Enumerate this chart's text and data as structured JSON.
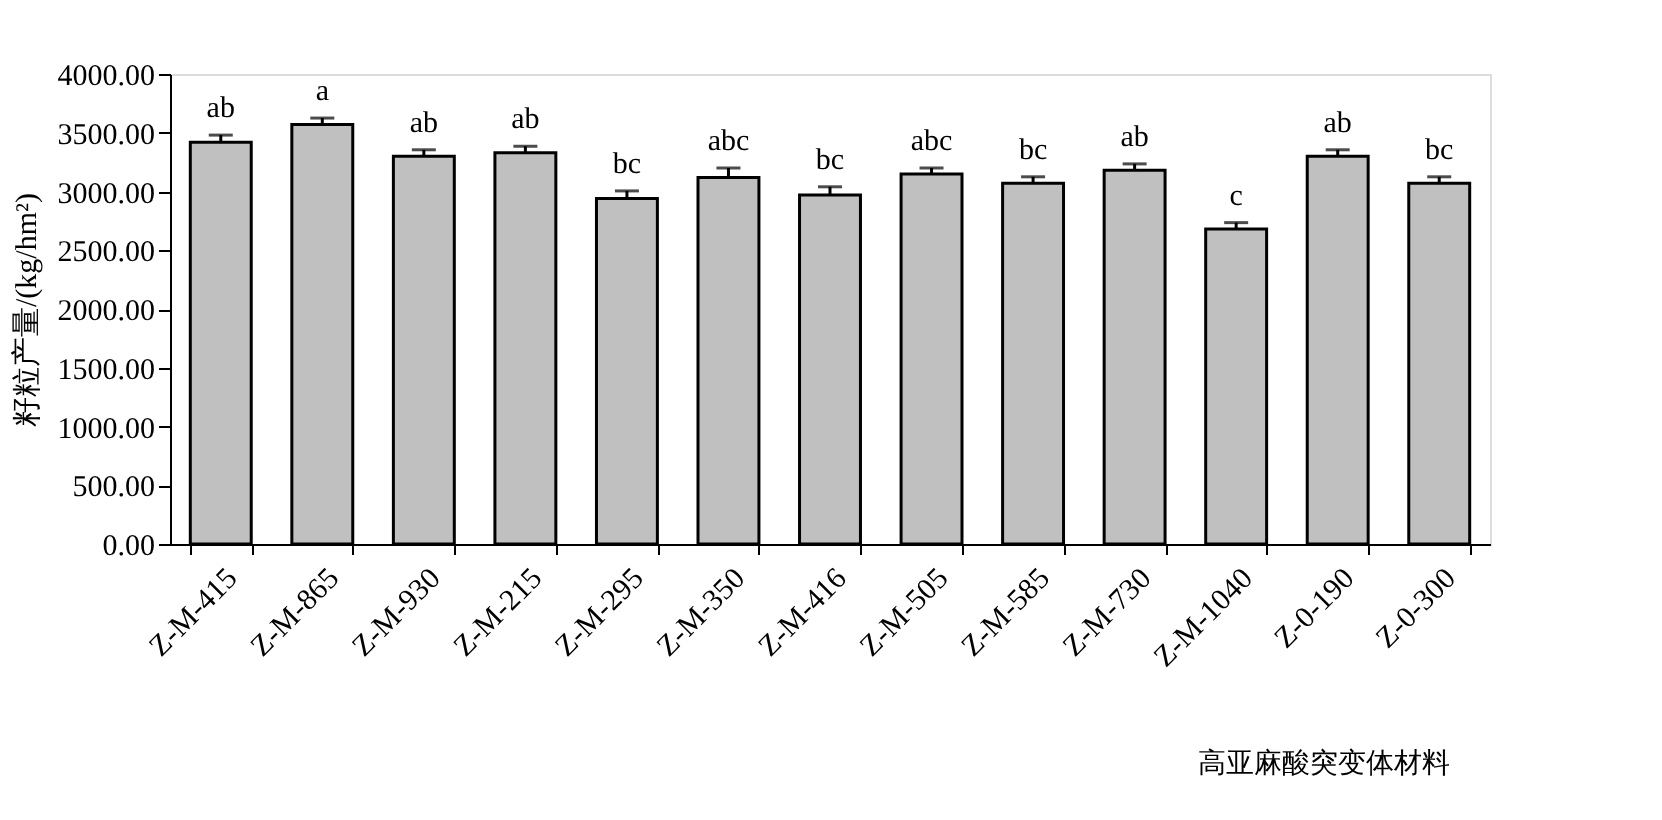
{
  "chart_data": {
    "type": "bar",
    "xlabel": "高亚麻酸突变体材料",
    "ylabel": "籽粒产量/(kg/hm²)",
    "categories": [
      "Z-M-415",
      "Z-M-865",
      "Z-M-930",
      "Z-M-215",
      "Z-M-295",
      "Z-M-350",
      "Z-M-416",
      "Z-M-505",
      "Z-M-585",
      "Z-M-730",
      "Z-M-1040",
      "Z-0-190",
      "Z-0-300"
    ],
    "values": [
      3420,
      3570,
      3300,
      3330,
      2940,
      3120,
      2970,
      3150,
      3070,
      3180,
      2680,
      3300,
      3070
    ],
    "errors": [
      60,
      55,
      55,
      55,
      65,
      80,
      70,
      50,
      55,
      55,
      55,
      55,
      55
    ],
    "color": "#c0c0c0",
    "ylim": [
      0,
      4000
    ],
    "yticks": [
      {
        "value": 0,
        "label": "0.00"
      },
      {
        "value": 500,
        "label": "500.00"
      },
      {
        "value": 1000,
        "label": "1000.00"
      },
      {
        "value": 1500,
        "label": "1500.00"
      },
      {
        "value": 2000,
        "label": "2000.00"
      },
      {
        "value": 2500,
        "label": "2500.00"
      },
      {
        "value": 3000,
        "label": "3000.00"
      },
      {
        "value": 3500,
        "label": "3500.00"
      },
      {
        "value": 4000,
        "label": "4000.00"
      }
    ],
    "grid": false,
    "annotations": [
      {
        "text": "ab",
        "x": "Z-M-415",
        "y": 3480
      },
      {
        "text": "a",
        "x": "Z-M-865",
        "y": 3625
      },
      {
        "text": "ab",
        "x": "Z-M-930",
        "y": 3355
      },
      {
        "text": "ab",
        "x": "Z-M-215",
        "y": 3385
      },
      {
        "text": "bc",
        "x": "Z-M-295",
        "y": 3005
      },
      {
        "text": "abc",
        "x": "Z-M-350",
        "y": 3200
      },
      {
        "text": "bc",
        "x": "Z-M-416",
        "y": 3040
      },
      {
        "text": "abc",
        "x": "Z-M-505",
        "y": 3200
      },
      {
        "text": "bc",
        "x": "Z-M-585",
        "y": 3125
      },
      {
        "text": "ab",
        "x": "Z-M-730",
        "y": 3235
      },
      {
        "text": "c",
        "x": "Z-M-1040",
        "y": 2735
      },
      {
        "text": "ab",
        "x": "Z-0-190",
        "y": 3355
      },
      {
        "text": "bc",
        "x": "Z-0-300",
        "y": 3125
      }
    ]
  }
}
